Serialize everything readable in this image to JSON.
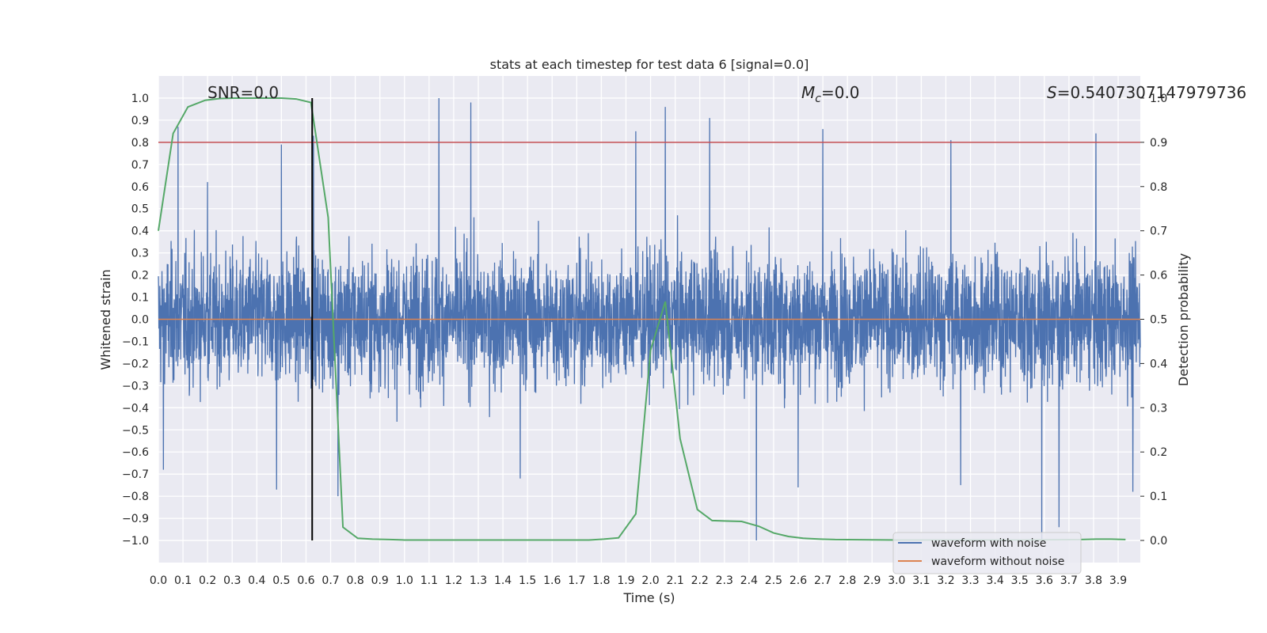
{
  "chart_data": {
    "type": "line",
    "title": "stats at each timestep for test data 6 [signal=0.0]",
    "xlabel": "Time (s)",
    "ylabel": "Whitened strain",
    "y2label": "Detection probability",
    "xlim": [
      0.0,
      3.99
    ],
    "ylim": [
      -1.1,
      1.1
    ],
    "y2lim": [
      -0.05,
      1.05
    ],
    "x_ticks": [
      0.0,
      0.1,
      0.2,
      0.3,
      0.4,
      0.5,
      0.6,
      0.7,
      0.8,
      0.9,
      1.0,
      1.1,
      1.2,
      1.3,
      1.4,
      1.5,
      1.6,
      1.7,
      1.8,
      1.9,
      2.0,
      2.1,
      2.2,
      2.3,
      2.4,
      2.5,
      2.6,
      2.7,
      2.8,
      2.9,
      3.0,
      3.1,
      3.2,
      3.3,
      3.4,
      3.5,
      3.6,
      3.7,
      3.8,
      3.9
    ],
    "y_ticks": [
      1.0,
      0.9,
      0.8,
      0.7,
      0.6,
      0.5,
      0.4,
      0.3,
      0.2,
      0.1,
      0.0,
      -0.1,
      -0.2,
      -0.3,
      -0.4,
      -0.5,
      -0.6,
      -0.7,
      -0.8,
      -0.9,
      -1.0
    ],
    "y2_ticks": [
      1.0,
      0.9,
      0.8,
      0.7,
      0.6,
      0.5,
      0.4,
      0.3,
      0.2,
      0.1,
      0.0
    ],
    "grid": true,
    "legend_position": "bottom-right",
    "series": [
      {
        "name": "waveform with noise",
        "color": "#4c72b0",
        "axis": "left",
        "description_values": "dense noise in approx [-1.0, 1.0]",
        "peaks": [
          [
            0.08,
            0.87
          ],
          [
            0.2,
            0.62
          ],
          [
            0.5,
            0.79
          ],
          [
            0.63,
            0.83
          ],
          [
            1.14,
            1.0
          ],
          [
            1.27,
            0.98
          ],
          [
            1.94,
            0.85
          ],
          [
            2.06,
            0.96
          ],
          [
            2.24,
            0.91
          ],
          [
            2.7,
            0.86
          ],
          [
            3.22,
            0.81
          ],
          [
            3.81,
            0.84
          ]
        ],
        "troughs": [
          [
            0.02,
            -0.68
          ],
          [
            0.48,
            -0.77
          ],
          [
            0.73,
            -0.8
          ],
          [
            1.47,
            -0.72
          ],
          [
            2.43,
            -1.0
          ],
          [
            2.6,
            -0.76
          ],
          [
            3.26,
            -0.75
          ],
          [
            3.59,
            -1.0
          ],
          [
            3.66,
            -0.94
          ],
          [
            3.96,
            -0.78
          ]
        ]
      },
      {
        "name": "waveform without noise",
        "color": "#dd8452",
        "axis": "left",
        "x": [
          0.0,
          3.99
        ],
        "values": [
          0.0,
          0.0
        ]
      },
      {
        "name": "detection probability",
        "color": "#55a868",
        "axis": "right",
        "x": [
          0.0,
          0.06,
          0.12,
          0.19,
          0.25,
          0.31,
          0.37,
          0.44,
          0.5,
          0.56,
          0.62,
          0.69,
          0.75,
          0.81,
          0.87,
          0.94,
          1.0,
          1.25,
          1.5,
          1.75,
          1.81,
          1.87,
          1.94,
          2.0,
          2.06,
          2.12,
          2.19,
          2.25,
          2.31,
          2.37,
          2.44,
          2.5,
          2.56,
          2.62,
          2.69,
          2.75,
          3.0,
          3.25,
          3.5,
          3.75,
          3.81,
          3.87,
          3.93
        ],
        "values": [
          0.7,
          0.92,
          0.98,
          0.995,
          0.999,
          1.0,
          1.0,
          1.0,
          1.0,
          0.998,
          0.99,
          0.73,
          0.03,
          0.005,
          0.003,
          0.002,
          0.001,
          0.001,
          0.001,
          0.001,
          0.003,
          0.006,
          0.06,
          0.43,
          0.54,
          0.23,
          0.07,
          0.045,
          0.044,
          0.043,
          0.032,
          0.017,
          0.009,
          0.005,
          0.003,
          0.002,
          0.001,
          0.001,
          0.001,
          0.002,
          0.003,
          0.003,
          0.002
        ]
      }
    ],
    "threshold_line": {
      "axis": "right",
      "value": 0.9,
      "color": "#c44e52"
    },
    "vertical_marker": {
      "x": 0.625,
      "y_from": -1.0,
      "y_to": 1.0,
      "color": "#000000"
    },
    "annotations": {
      "snr": "SNR=0.0",
      "mc_symbol": "M",
      "mc_sub": "c",
      "mc_value": "=0.0",
      "s_symbol": "S",
      "s_value": "=0.5407307147979736"
    },
    "legend": [
      "waveform with noise",
      "waveform without noise"
    ]
  }
}
